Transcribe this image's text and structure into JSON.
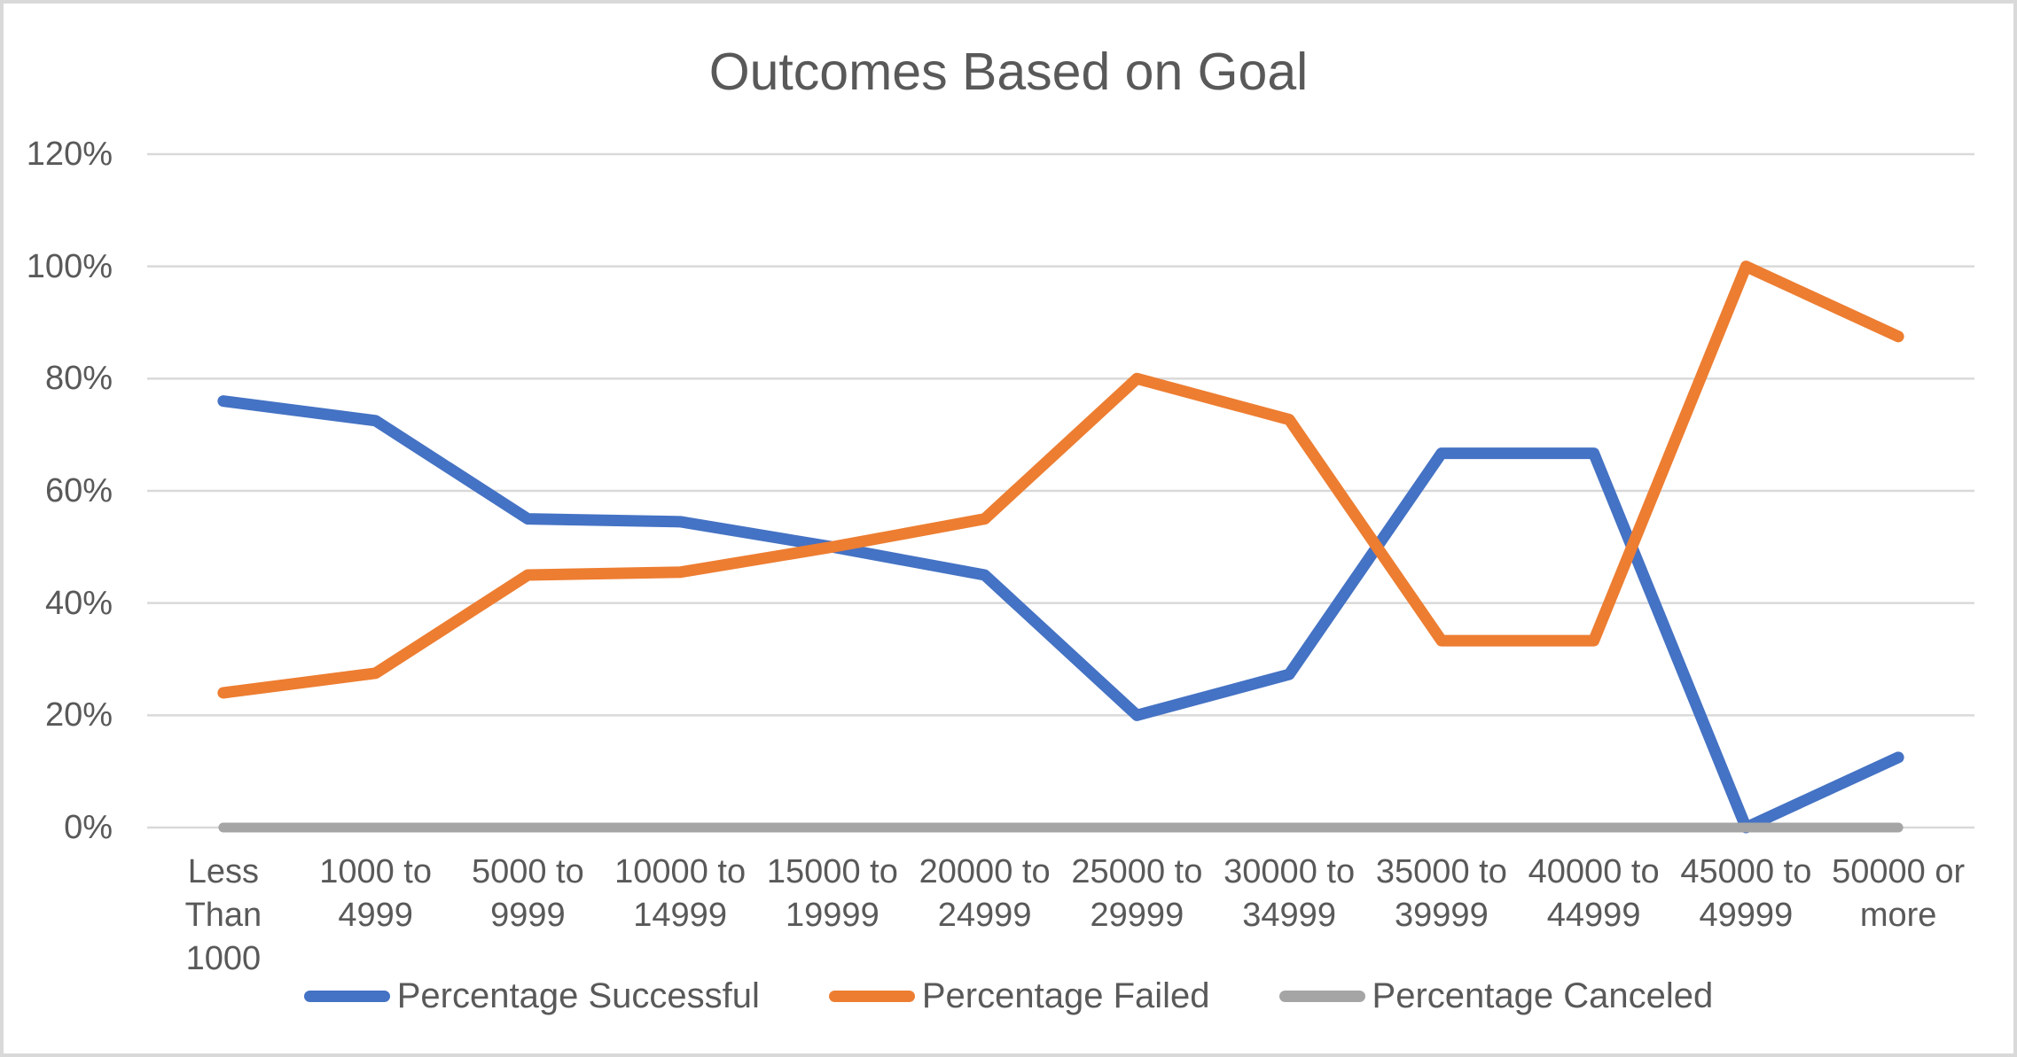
{
  "chart_data": {
    "type": "line",
    "title": "Outcomes Based on Goal",
    "categories": [
      "Less Than 1000",
      "1000 to 4999",
      "5000 to 9999",
      "10000 to 14999",
      "15000 to 19999",
      "20000 to 24999",
      "25000 to 29999",
      "30000 to 34999",
      "35000 to 39999",
      "40000 to 44999",
      "45000 to 49999",
      "50000 or more"
    ],
    "series": [
      {
        "name": "Percentage Successful",
        "color": "#4472C4",
        "values": [
          76,
          72.5,
          55,
          54.5,
          50,
          45,
          20,
          27.3,
          66.7,
          66.7,
          0,
          12.5
        ]
      },
      {
        "name": "Percentage Failed",
        "color": "#ED7D31",
        "values": [
          24,
          27.5,
          45,
          45.5,
          50,
          55,
          80,
          72.7,
          33.3,
          33.3,
          100,
          87.5
        ]
      },
      {
        "name": "Percentage Canceled",
        "color": "#A5A5A5",
        "values": [
          0,
          0,
          0,
          0,
          0,
          0,
          0,
          0,
          0,
          0,
          0,
          0
        ]
      }
    ],
    "y_ticks": [
      "0%",
      "20%",
      "40%",
      "60%",
      "80%",
      "100%",
      "120%"
    ],
    "ylim": [
      0,
      120
    ],
    "xlabel": "",
    "ylabel": "",
    "grid": "horizontal",
    "legend_position": "bottom"
  },
  "colors": {
    "text": "#595959",
    "gridline": "#D9D9D9",
    "background": "#FFFFFF",
    "frame_border": "#D9D9D9"
  }
}
